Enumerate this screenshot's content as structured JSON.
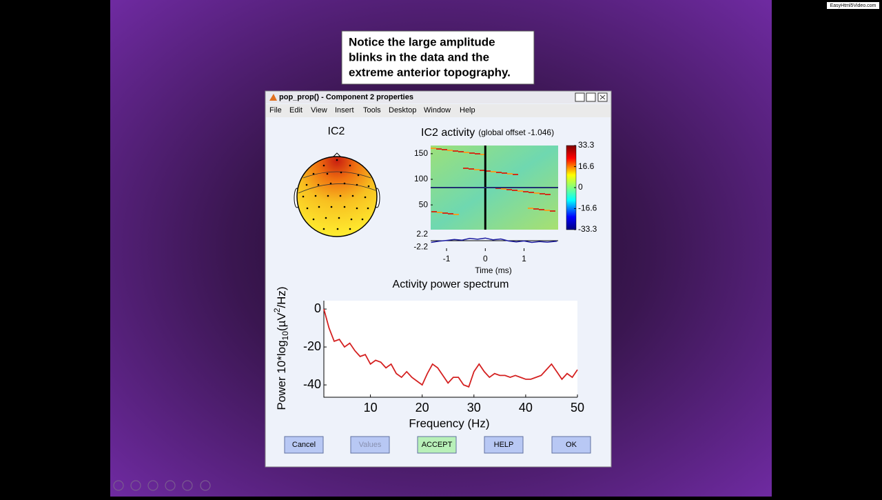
{
  "watermark": "EasyHtml5Video.com",
  "callout": [
    "Notice the large amplitude",
    "blinks in the data and the",
    "extreme anterior topography."
  ],
  "window": {
    "title": "pop_prop() - Component 2 properties",
    "menu": [
      "File",
      "Edit",
      "View",
      "Insert",
      "Tools",
      "Desktop",
      "Window",
      "Help"
    ]
  },
  "topo": {
    "title": "IC2"
  },
  "buttons": [
    "Cancel",
    "Values",
    "ACCEPT",
    "HELP",
    "OK"
  ],
  "chart_data": [
    {
      "type": "erpimage",
      "title": "IC2 activity",
      "subtitle": "(global offset -1.046)",
      "xlim": [
        -1.41,
        1.88
      ],
      "xticks": [
        -1,
        0,
        1
      ],
      "xlabel": "Time (ms)",
      "ylim": [
        1.6,
        166
      ],
      "yticks": [
        50,
        100,
        150
      ],
      "clim": [
        -33.3,
        33.3
      ],
      "cticks": [
        33.3,
        16.6,
        0,
        -16.6,
        -33.3
      ],
      "erp": {
        "ylim": [
          -2.6,
          2.6
        ],
        "yticks": [
          2.2,
          -2.2
        ],
        "color": "#1a1aa0",
        "x": [
          -1.4,
          -1.2,
          -1.0,
          -0.8,
          -0.6,
          -0.4,
          -0.2,
          0,
          0.2,
          0.4,
          0.6,
          0.8,
          1.0,
          1.2,
          1.4,
          1.6,
          1.85
        ],
        "values": [
          -0.6,
          -0.2,
          0.1,
          0.4,
          0.2,
          0.8,
          0.5,
          0.9,
          0.3,
          0.6,
          -0.1,
          -0.4,
          -0.1,
          -0.6,
          -0.3,
          -0.5,
          -0.2
        ]
      }
    },
    {
      "type": "line",
      "title": "Activity power spectrum",
      "xlabel": "Frequency (Hz)",
      "ylabel": {
        "text": "Power 10*log",
        "sub": "10",
        "text2": "(µV",
        "sup": "2",
        "text3": "/Hz)"
      },
      "xlim": [
        1,
        50
      ],
      "xticks": [
        10,
        20,
        30,
        40,
        50
      ],
      "ylim": [
        -46.5,
        4.4
      ],
      "yticks": [
        0,
        -20,
        -40
      ],
      "color": "#d42020",
      "x": [
        1,
        2,
        3,
        4,
        5,
        6,
        7,
        8,
        9,
        10,
        11,
        12,
        13,
        14,
        15,
        16,
        17,
        18,
        19,
        20,
        21,
        22,
        23,
        24,
        25,
        26,
        27,
        28,
        29,
        30,
        31,
        32,
        33,
        34,
        35,
        36,
        37,
        38,
        39,
        40,
        41,
        42,
        43,
        44,
        45,
        46,
        47,
        48,
        49,
        50
      ],
      "values": [
        0,
        -10,
        -17,
        -16,
        -20,
        -18,
        -22,
        -25,
        -24,
        -29,
        -27,
        -28,
        -31,
        -29,
        -34,
        -36,
        -33,
        -36,
        -38,
        -40,
        -34,
        -29,
        -31,
        -35,
        -39,
        -36,
        -36,
        -40,
        -41,
        -33,
        -29,
        -33,
        -36,
        -34,
        -35,
        -35,
        -36,
        -35,
        -36,
        -37,
        -37,
        -36,
        -35,
        -32,
        -29,
        -33,
        -37,
        -34,
        -36,
        -32
      ]
    }
  ]
}
